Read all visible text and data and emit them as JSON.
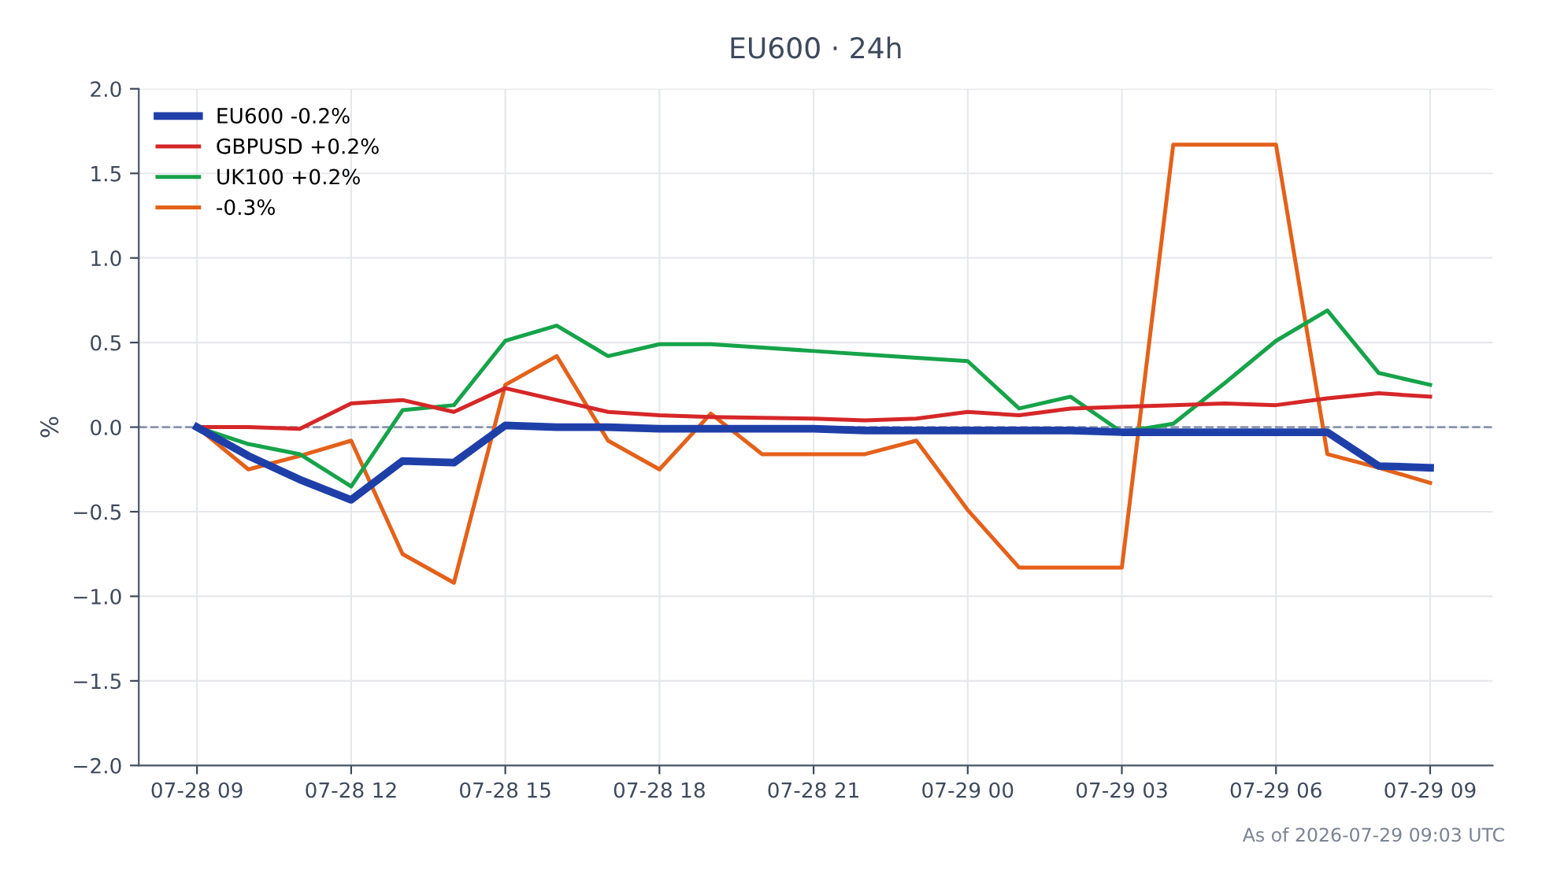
{
  "chart_data": {
    "type": "line",
    "title": "EU600 · 24h",
    "ylabel": "%",
    "x": [
      "2026-07-28T09:00",
      "2026-07-28T10:00",
      "2026-07-28T11:00",
      "2026-07-28T12:00",
      "2026-07-28T13:00",
      "2026-07-28T14:00",
      "2026-07-28T15:00",
      "2026-07-28T16:00",
      "2026-07-28T17:00",
      "2026-07-28T18:00",
      "2026-07-28T19:00",
      "2026-07-28T20:00",
      "2026-07-28T21:00",
      "2026-07-28T22:00",
      "2026-07-28T23:00",
      "2026-07-29T00:00",
      "2026-07-29T01:00",
      "2026-07-29T02:00",
      "2026-07-29T03:00",
      "2026-07-29T04:00",
      "2026-07-29T05:00",
      "2026-07-29T06:00",
      "2026-07-29T07:00",
      "2026-07-29T08:00",
      "2026-07-29T09:00"
    ],
    "series": [
      {
        "name": "EU600 -0.2%",
        "color": "#1f3fa8",
        "values": [
          0,
          -0.17,
          -0.31,
          -0.43,
          -0.2,
          -0.21,
          0.01,
          0.0,
          0.0,
          -0.01,
          -0.01,
          -0.01,
          -0.01,
          -0.02,
          -0.02,
          -0.02,
          -0.02,
          -0.02,
          -0.03,
          -0.03,
          -0.03,
          -0.03,
          -0.03,
          -0.23,
          -0.24
        ]
      },
      {
        "name": "GBPUSD +0.2%",
        "color": "#d62728",
        "values": [
          0,
          0.0,
          -0.01,
          0.14,
          0.16,
          0.09,
          0.23,
          0.16,
          0.09,
          0.07,
          0.06,
          0.055,
          0.05,
          0.04,
          0.05,
          0.09,
          0.07,
          0.11,
          0.12,
          0.13,
          0.14,
          0.13,
          0.17,
          0.2,
          0.18
        ]
      },
      {
        "name": "UK100 +0.2%",
        "color": "#16a34a",
        "values": [
          0,
          -0.1,
          -0.16,
          -0.35,
          0.1,
          0.13,
          0.51,
          0.6,
          0.42,
          0.49,
          0.49,
          0.47,
          0.45,
          0.43,
          0.41,
          0.39,
          0.11,
          0.18,
          -0.03,
          0.02,
          0.26,
          0.51,
          0.69,
          0.32,
          0.25
        ]
      },
      {
        "name": "-0.3%",
        "color": "#e4611a",
        "values": [
          0,
          -0.25,
          -0.17,
          -0.08,
          -0.75,
          -0.92,
          0.25,
          0.42,
          -0.08,
          -0.25,
          0.08,
          -0.16,
          -0.16,
          -0.16,
          -0.08,
          -0.49,
          -0.83,
          -0.83,
          -0.83,
          1.67,
          1.67,
          1.67,
          -0.16,
          -0.24,
          -0.33
        ]
      }
    ],
    "xlim": [
      "2026-07-28T07:52",
      "2026-07-29T10:13"
    ],
    "xticks": [
      {
        "value": "2026-07-28T09:00",
        "label": "07-28 09"
      },
      {
        "value": "2026-07-28T12:00",
        "label": "07-28 12"
      },
      {
        "value": "2026-07-28T15:00",
        "label": "07-28 15"
      },
      {
        "value": "2026-07-28T18:00",
        "label": "07-28 18"
      },
      {
        "value": "2026-07-28T21:00",
        "label": "07-28 21"
      },
      {
        "value": "2026-07-29T00:00",
        "label": "07-29 00"
      },
      {
        "value": "2026-07-29T03:00",
        "label": "07-29 03"
      },
      {
        "value": "2026-07-29T06:00",
        "label": "07-29 06"
      },
      {
        "value": "2026-07-29T09:00",
        "label": "07-29 09"
      }
    ],
    "ylim": [
      -2.0,
      2.0
    ],
    "yticks": [
      {
        "value": -2.0,
        "label": "−2.0"
      },
      {
        "value": -1.5,
        "label": "−1.5"
      },
      {
        "value": -1.0,
        "label": "−1.0"
      },
      {
        "value": -0.5,
        "label": "−0.5"
      },
      {
        "value": 0.0,
        "label": "0.0"
      },
      {
        "value": 0.5,
        "label": "0.5"
      },
      {
        "value": 1.0,
        "label": "1.0"
      },
      {
        "value": 1.5,
        "label": "1.5"
      },
      {
        "value": 2.0,
        "label": "2.0"
      }
    ],
    "ref_lines": [
      {
        "axis": "y",
        "value": 0,
        "label": null,
        "color": "#8a94ad",
        "line_style": "dashed"
      }
    ],
    "grid": true,
    "legend": "top left",
    "marker": "none",
    "line_style": "solid",
    "annotations": [
      "As of 2026-07-29 09:03 UTC"
    ]
  }
}
